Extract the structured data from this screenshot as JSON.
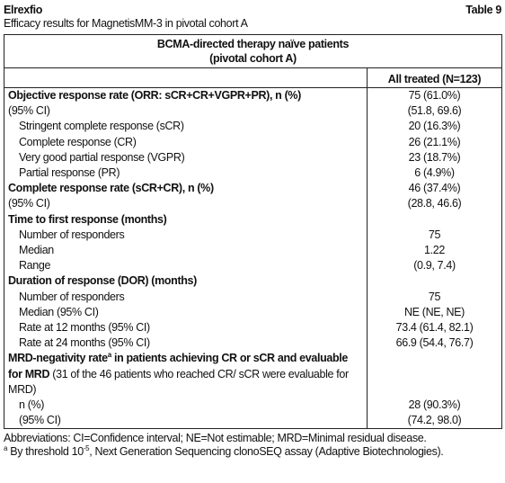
{
  "header": {
    "title": "Elrexfio",
    "table_label": "Table 9",
    "subtitle": "Efficacy results for MagnetisMM-3 in pivotal cohort A"
  },
  "table": {
    "group_header": [
      "BCMA-directed therapy naïve patients",
      "(pivotal cohort A)"
    ],
    "column_header": "All treated (N=123)",
    "rows": [
      {
        "label": "Objective response rate (ORR: sCR+CR+VGPR+PR), n (%)",
        "value": "75 (61.0%)",
        "bold": true,
        "indent": 0
      },
      {
        "label": "(95% CI)",
        "value": "(51.8, 69.6)",
        "bold": false,
        "indent": 0
      },
      {
        "label": "Stringent complete response (sCR)",
        "value": "20 (16.3%)",
        "bold": false,
        "indent": 1
      },
      {
        "label": "Complete response (CR)",
        "value": "26 (21.1%)",
        "bold": false,
        "indent": 1
      },
      {
        "label": "Very good partial response (VGPR)",
        "value": "23 (18.7%)",
        "bold": false,
        "indent": 1
      },
      {
        "label": "Partial response (PR)",
        "value": "6 (4.9%)",
        "bold": false,
        "indent": 1
      },
      {
        "label": "Complete response rate (sCR+CR), n (%)",
        "value": "46 (37.4%)",
        "bold": true,
        "indent": 0
      },
      {
        "label": "(95% CI)",
        "value": "(28.8, 46.6)",
        "bold": false,
        "indent": 0
      },
      {
        "label": "Time to first response (months)",
        "bold": true,
        "indent": 0
      },
      {
        "label": "Number of responders",
        "value": "75",
        "bold": false,
        "indent": 1
      },
      {
        "label": "Median",
        "value": "1.22",
        "bold": false,
        "indent": 1
      },
      {
        "label": "Range",
        "value": "(0.9, 7.4)",
        "bold": false,
        "indent": 1
      },
      {
        "label": "Duration of response (DOR) (months)",
        "bold": true,
        "indent": 0
      },
      {
        "label": "Number of responders",
        "value": "75",
        "bold": false,
        "indent": 1
      },
      {
        "label": "Median (95% CI)",
        "value": "NE (NE, NE)",
        "bold": false,
        "indent": 1
      },
      {
        "label": "Rate at 12 months (95% CI)",
        "value": "73.4 (61.4, 82.1)",
        "bold": false,
        "indent": 1
      },
      {
        "label": "Rate at 24 months (95% CI)",
        "value": "66.9 (54.4, 76.7)",
        "bold": false,
        "indent": 1
      },
      {
        "label_parts": [
          {
            "text": "MRD-negativity rate",
            "bold": true,
            "sup": false
          },
          {
            "text": "a",
            "bold": true,
            "sup": true
          },
          {
            "text": " in patients achieving CR or sCR and evaluable for MRD",
            "bold": true,
            "sup": false
          },
          {
            "text": " (31 of the 46 patients who reached CR/ sCR were evaluable for MRD)",
            "bold": false,
            "sup": false
          }
        ],
        "indent": 0
      },
      {
        "label": "n (%)",
        "value": "28 (90.3%)",
        "bold": false,
        "indent": 1
      },
      {
        "label": "(95% CI)",
        "value": "(74.2, 98.0)",
        "bold": false,
        "indent": 1
      }
    ]
  },
  "footnotes": [
    {
      "parts": [
        {
          "text": "Abbreviations: CI=Confidence interval; NE=Not estimable; MRD=Minimal residual disease.",
          "sup": false
        }
      ]
    },
    {
      "parts": [
        {
          "text": "a",
          "sup": true
        },
        {
          "text": " By threshold 10",
          "sup": false
        },
        {
          "text": "-5",
          "sup": true
        },
        {
          "text": ", Next Generation Sequencing clonoSEQ assay (Adaptive Biotechnologies).",
          "sup": false
        }
      ]
    }
  ]
}
